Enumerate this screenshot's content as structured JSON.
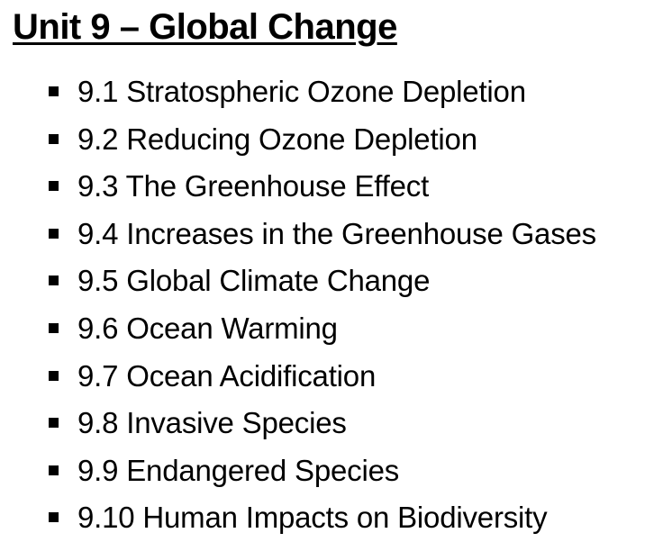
{
  "document": {
    "title": "Unit 9 – Global Change",
    "topics": [
      "9.1 Stratospheric Ozone Depletion",
      "9.2 Reducing Ozone Depletion",
      "9.3 The Greenhouse Effect",
      "9.4 Increases in the Greenhouse Gases",
      "9.5 Global Climate Change",
      "9.6 Ocean Warming",
      "9.7 Ocean Acidification",
      "9.8 Invasive Species",
      "9.9 Endangered Species",
      "9.10 Human Impacts on Biodiversity"
    ],
    "bullet_icon": "square-bullet-icon",
    "colors": {
      "text": "#000000",
      "background": "#ffffff"
    }
  }
}
